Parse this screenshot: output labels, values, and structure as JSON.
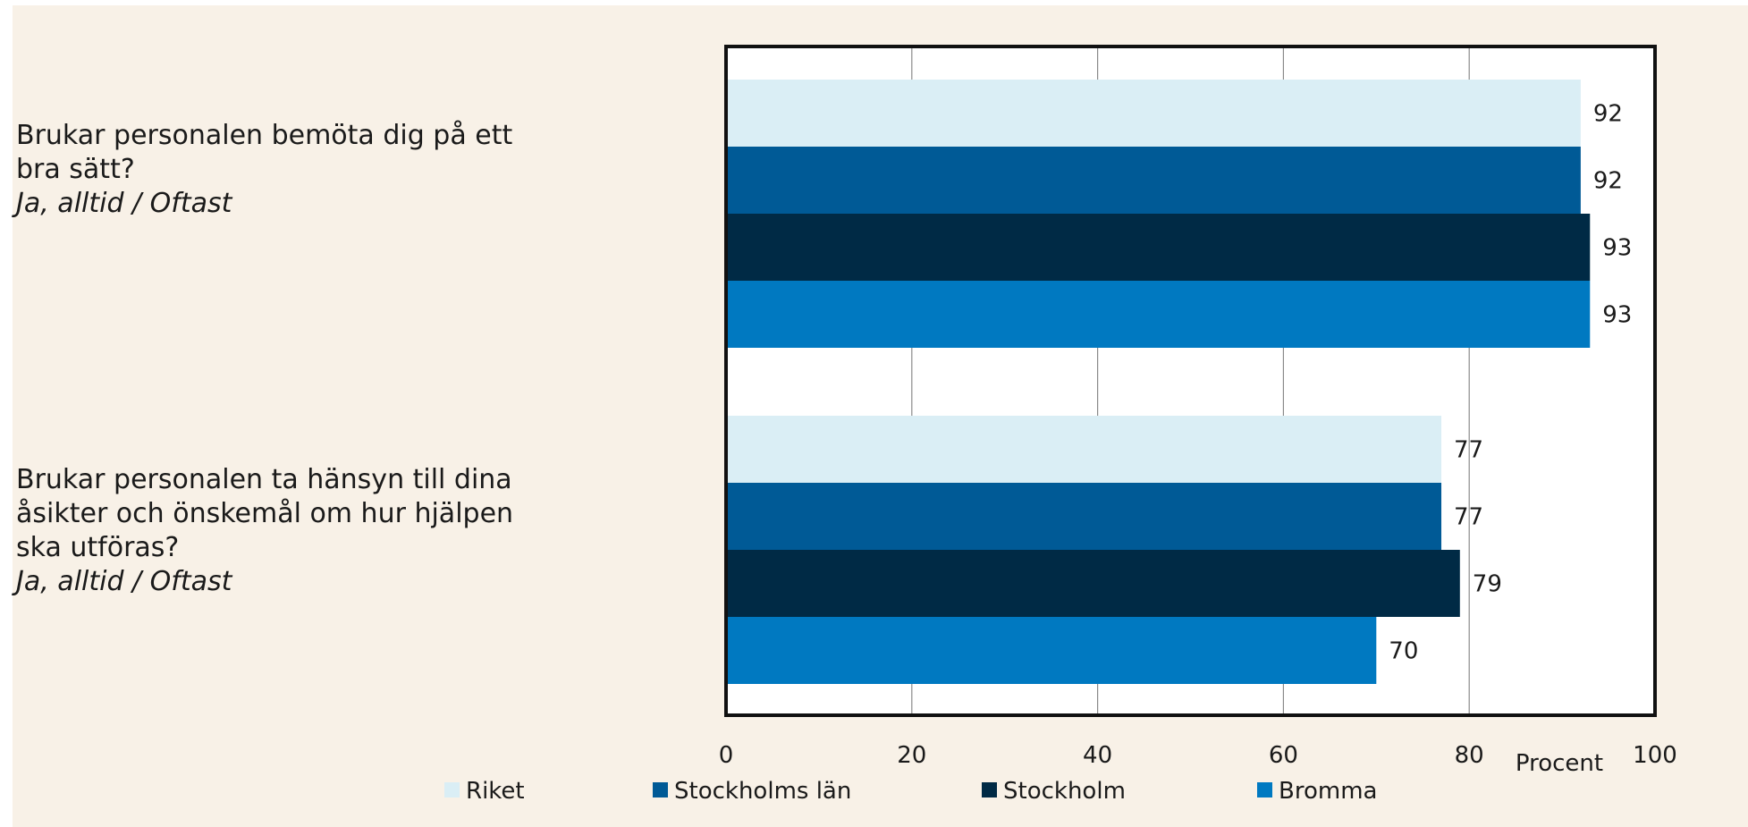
{
  "chart_data": {
    "type": "bar",
    "orientation": "horizontal",
    "categories": [
      {
        "question": "Brukar personalen bemöta dig på ett bra sätt?",
        "answer": "Ja, alltid / Oftast"
      },
      {
        "question": "Brukar personalen ta hänsyn till dina åsikter och önskemål om hur hjälpen ska utföras?",
        "answer": "Ja, alltid / Oftast"
      }
    ],
    "series": [
      {
        "name": "Riket",
        "color": "#daeef5",
        "values": [
          92,
          77
        ]
      },
      {
        "name": "Stockholms län",
        "color": "#005a96",
        "values": [
          92,
          77
        ]
      },
      {
        "name": "Stockholm",
        "color": "#002a45",
        "values": [
          93,
          79
        ]
      },
      {
        "name": "Bromma",
        "color": "#0079c1",
        "values": [
          93,
          70
        ]
      }
    ],
    "xlim": [
      0,
      100
    ],
    "xticks": [
      0,
      20,
      40,
      60,
      80,
      100
    ],
    "xlabel": "Procent",
    "grid": "vertical",
    "legend_position": "bottom"
  }
}
